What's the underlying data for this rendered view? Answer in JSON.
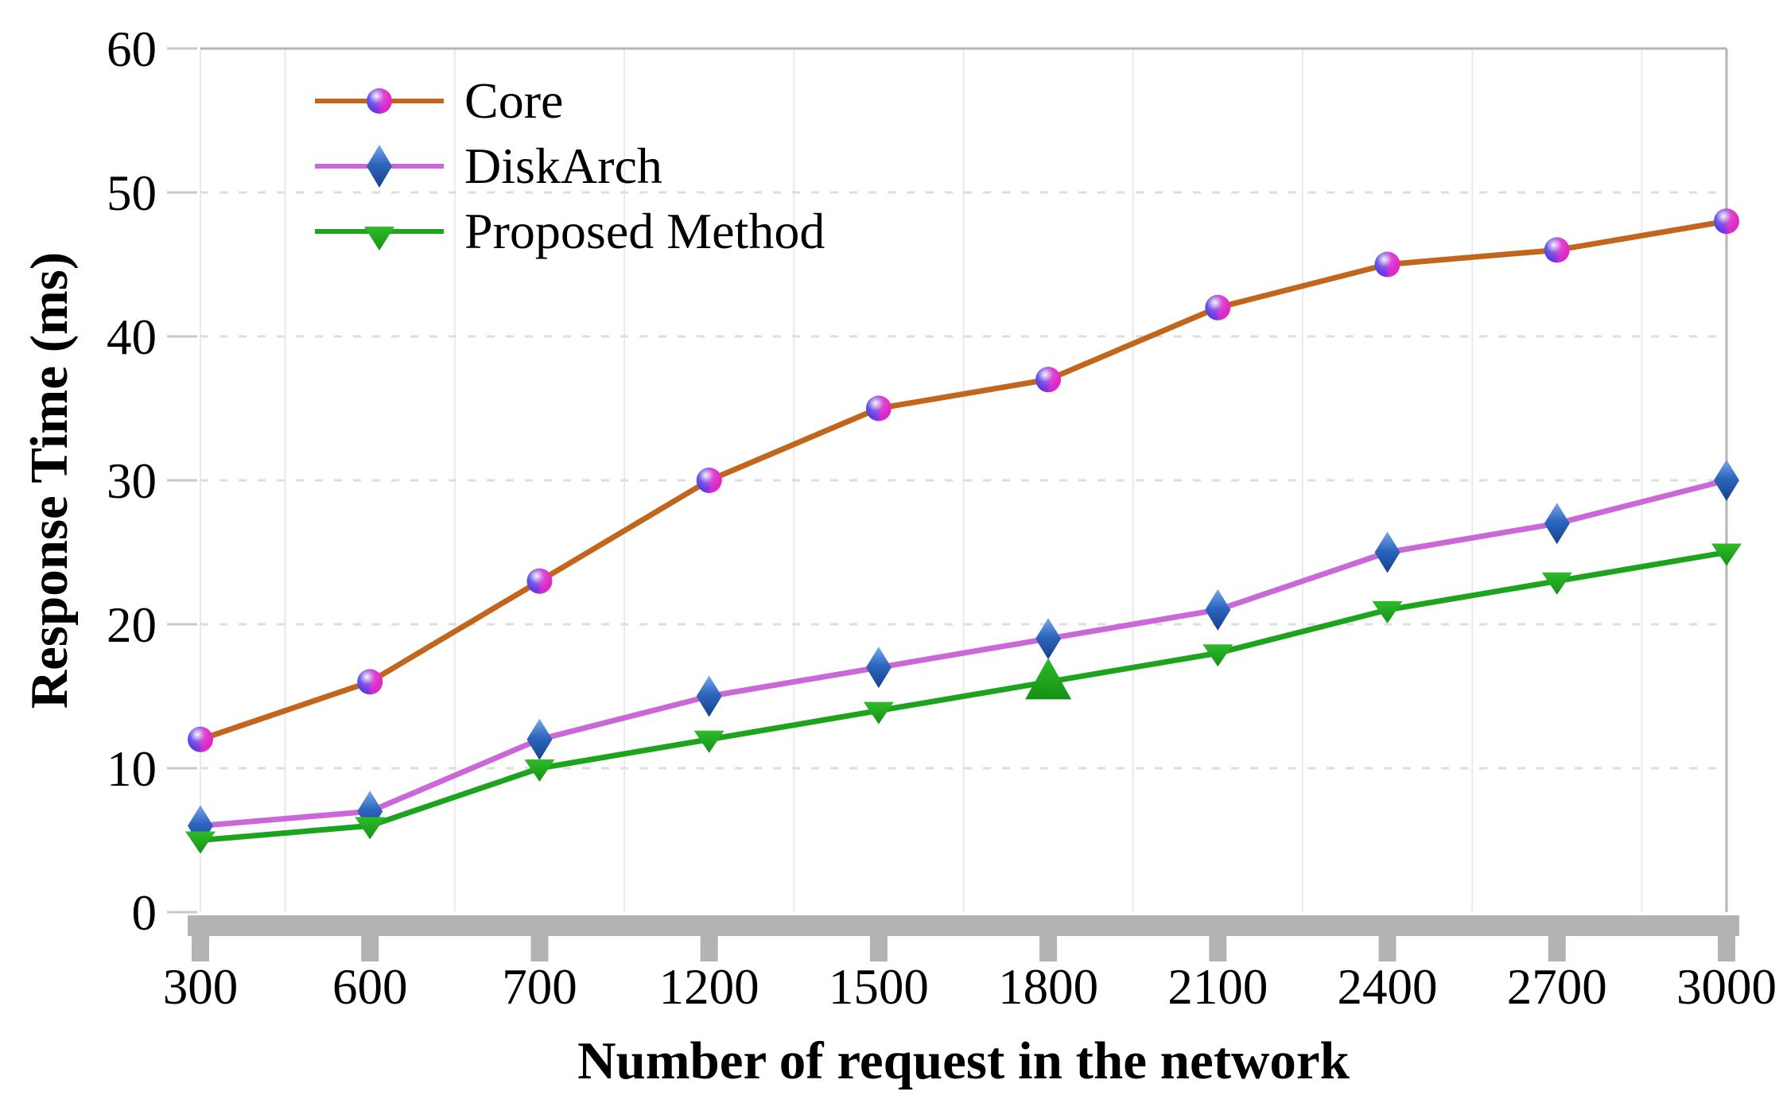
{
  "chart_data": {
    "type": "line",
    "title": "",
    "xlabel": "Number of request in the network",
    "ylabel": "Response Time (ms)",
    "categories": [
      "300",
      "600",
      "700",
      "1200",
      "1500",
      "1800",
      "2100",
      "2400",
      "2700",
      "3000"
    ],
    "yticks": [
      0,
      10,
      20,
      30,
      40,
      50,
      60
    ],
    "ylim": [
      0,
      60
    ],
    "grid": {
      "vertical": "solid between categories",
      "horizontal": "dashed at 10-50"
    },
    "legend_position": "top-left-inside",
    "series": [
      {
        "name": "Core",
        "color": "#c2661e",
        "marker": "gradient-ball",
        "marker_colors": {
          "left": "#4340e6",
          "right": "#e02ac4",
          "highlight": "#ffffff"
        },
        "values": [
          12,
          16,
          23,
          30,
          35,
          37,
          42,
          45,
          46,
          48
        ]
      },
      {
        "name": "DiskArch",
        "color": "#ca68d8",
        "marker": "diamond",
        "marker_colors": {
          "top": "#79a7ec",
          "bottom": "#16408d"
        },
        "values": [
          6,
          7,
          12,
          15,
          17,
          19,
          21,
          25,
          27,
          30
        ]
      },
      {
        "name": "Proposed Method",
        "color": "#1da31d",
        "marker": "triangle-down",
        "marker_colors": {
          "top": "#2fbb2a",
          "bottom": "#149114"
        },
        "values": [
          5,
          6,
          10,
          12,
          14,
          16,
          18,
          21,
          23,
          25
        ],
        "special_marker": {
          "index": 5,
          "shape": "triangle-up",
          "size": "large"
        }
      }
    ],
    "style": {
      "band": "#b3b3b3",
      "grid_v": "#eaeaea",
      "grid_h": "#dedede",
      "frame": "#b5b5b5",
      "y_tick": "#c9c9c9"
    }
  }
}
